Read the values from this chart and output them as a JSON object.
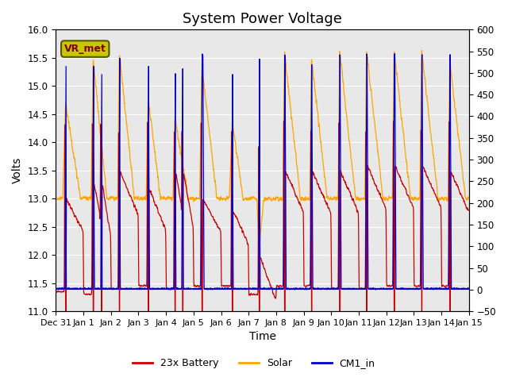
{
  "title": "System Power Voltage",
  "xlabel": "Time",
  "ylabel": "Volts",
  "ylim": [
    11.0,
    16.0
  ],
  "ylim2": [
    -50,
    600
  ],
  "yticks_left": [
    11.0,
    11.5,
    12.0,
    12.5,
    13.0,
    13.5,
    14.0,
    14.5,
    15.0,
    15.5,
    16.0
  ],
  "yticks_right": [
    -50,
    0,
    50,
    100,
    150,
    200,
    250,
    300,
    350,
    400,
    450,
    500,
    550,
    600
  ],
  "xtick_labels": [
    "Dec 31",
    "Jan 1",
    "Jan 2",
    "Jan 3",
    "Jan 4",
    "Jan 5",
    "Jan 6",
    "Jan 7",
    "Jan 8",
    "Jan 9",
    "Jan 10",
    "Jan 11",
    "Jan 12",
    "Jan 13",
    "Jan 14",
    "Jan 15"
  ],
  "color_battery": "#cc0000",
  "color_solar": "#ffa500",
  "color_cm1": "#0000cc",
  "vr_met_label": "VR_met",
  "vr_met_box_color": "#c8c800",
  "vr_met_text_color": "#800000",
  "legend_labels": [
    "23x Battery",
    "Solar",
    "CM1_in"
  ],
  "bg_color": "#e8e8e8",
  "grid_color": "#ffffff",
  "title_fontsize": 13,
  "label_fontsize": 10,
  "tick_fontsize": 8.5
}
